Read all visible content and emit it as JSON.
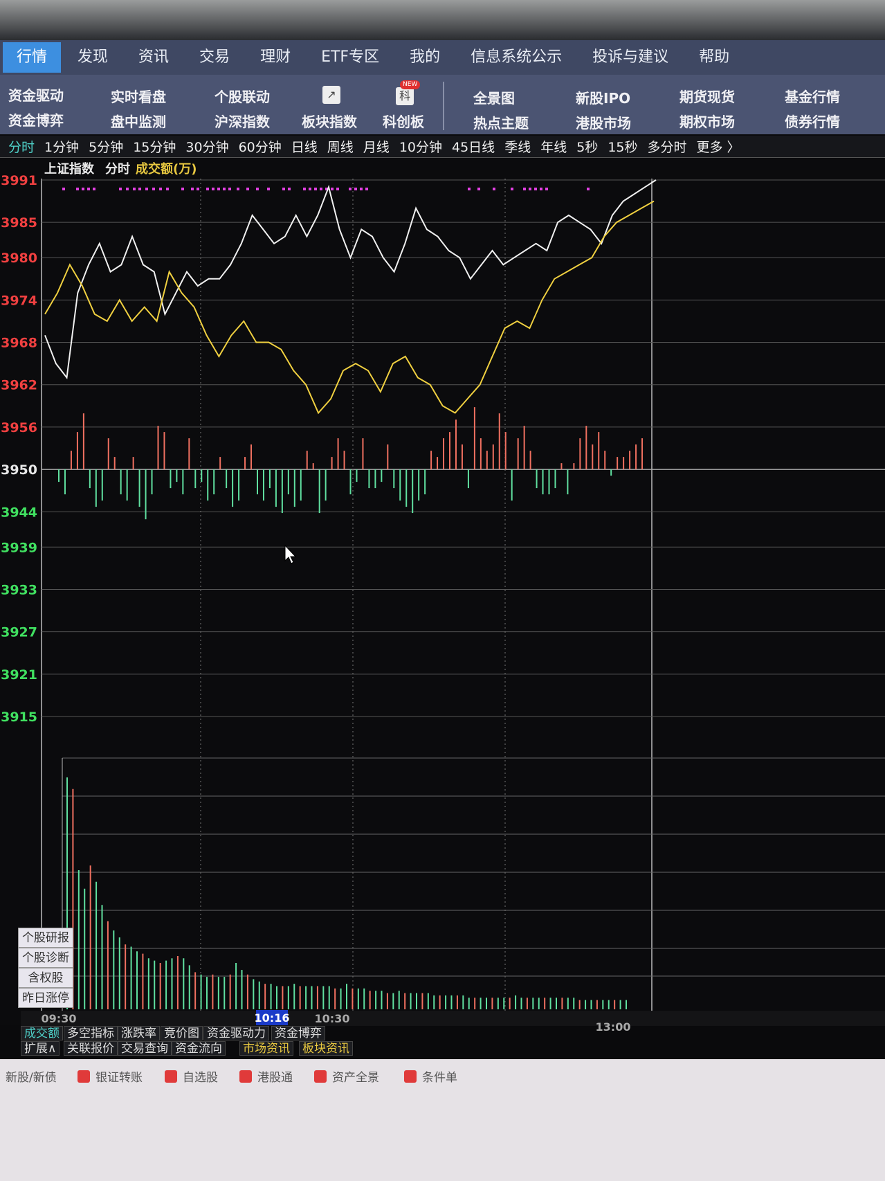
{
  "nav": {
    "items": [
      "行情",
      "发现",
      "资讯",
      "交易",
      "理财",
      "ETF专区",
      "我的",
      "信息系统公示",
      "投诉与建议",
      "帮助"
    ],
    "active": 0
  },
  "subnav": {
    "items": [
      "资金驱动",
      "资金博弈",
      "实时看盘",
      "盘中监测",
      "个股联动",
      "沪深指数",
      "板块指数",
      "科创板",
      "全景图",
      "热点主题",
      "新股IPO",
      "港股市场",
      "期货现货",
      "期权市场",
      "基金行情",
      "债券行情"
    ],
    "icon_kechuang": "科",
    "new_badge": "NEW"
  },
  "periods": {
    "items": [
      "分时",
      "1分钟",
      "5分钟",
      "15分钟",
      "30分钟",
      "60分钟",
      "日线",
      "周线",
      "月线",
      "10分钟",
      "45日线",
      "季线",
      "年线",
      "5秒",
      "15秒",
      "多分时",
      "更多 〉"
    ],
    "active": 0
  },
  "chart_header": {
    "name": "上证指数",
    "mode": "分时",
    "indicator": "成交额(万)"
  },
  "chart_data": {
    "type": "line",
    "y_ticks_up": [
      "3991",
      "3985",
      "3980",
      "3974",
      "3968",
      "3962",
      "3956"
    ],
    "y_tick_base": "3950",
    "y_ticks_down": [
      "3944",
      "3939",
      "3933",
      "3927",
      "3921",
      "3915"
    ],
    "ylim": [
      3915,
      3991
    ],
    "x_ticks": [
      "09:30",
      "10:30",
      "13:00"
    ],
    "crosshair_time": "10:16",
    "series": [
      {
        "color": "#f0f0f0",
        "values": [
          3969,
          3965,
          3963,
          3975,
          3979,
          3982,
          3978,
          3979,
          3983,
          3979,
          3978,
          3972,
          3975,
          3978,
          3976,
          3977,
          3977,
          3979,
          3982,
          3986,
          3984,
          3982,
          3983,
          3986,
          3983,
          3986,
          3990,
          3984,
          3980,
          3984,
          3983,
          3980,
          3978,
          3982,
          3987,
          3984,
          3983,
          3981,
          3980,
          3977,
          3979,
          3981,
          3979,
          3980,
          3981,
          3982,
          3981,
          3985,
          3986,
          3985,
          3984,
          3982,
          3986,
          3988,
          3989,
          3990,
          3991
        ]
      },
      {
        "color": "#f0d040",
        "values": [
          3972,
          3975,
          3979,
          3976,
          3972,
          3971,
          3974,
          3971,
          3973,
          3971,
          3978,
          3975,
          3973,
          3969,
          3966,
          3969,
          3971,
          3968,
          3968,
          3967,
          3964,
          3962,
          3958,
          3960,
          3964,
          3965,
          3964,
          3961,
          3965,
          3966,
          3963,
          3962,
          3959,
          3958,
          3960,
          3962,
          3966,
          3970,
          3971,
          3970,
          3974,
          3977,
          3978,
          3979,
          3980,
          3983,
          3985,
          3986,
          3987,
          3988
        ]
      }
    ],
    "pressure_bars": [
      -2,
      -4,
      3,
      6,
      9,
      -3,
      -6,
      -5,
      5,
      2,
      -4,
      -5,
      2,
      -6,
      -8,
      -4,
      7,
      6,
      -3,
      -2,
      -4,
      5,
      -3,
      -2,
      -5,
      -4,
      2,
      -3,
      -6,
      -5,
      2,
      4,
      -4,
      -5,
      -3,
      -6,
      -7,
      -4,
      -6,
      -5,
      3,
      1,
      -7,
      -5,
      2,
      5,
      3,
      -4,
      -2,
      5,
      -3,
      -3,
      -2,
      4,
      -3,
      -5,
      -6,
      -7,
      -5,
      -4,
      3,
      2,
      5,
      6,
      8,
      4,
      -3,
      10,
      5,
      3,
      4,
      9,
      6,
      -5,
      5,
      7,
      3,
      -3,
      -4,
      -4,
      -3,
      1,
      -4,
      1,
      5,
      7,
      4,
      6,
      3,
      -1,
      2,
      2,
      3,
      4,
      5
    ]
  },
  "volume_bars": [
    100,
    95,
    60,
    52,
    62,
    55,
    45,
    38,
    34,
    31,
    28,
    27,
    25,
    24,
    22,
    21,
    20,
    21,
    22,
    23,
    22,
    19,
    16,
    15,
    14,
    15,
    14,
    14,
    15,
    20,
    17,
    15,
    13,
    12,
    11,
    11,
    10,
    10,
    10,
    11,
    10,
    10,
    10,
    10,
    10,
    10,
    9,
    9,
    11,
    9,
    9,
    9,
    8,
    8,
    8,
    7,
    7,
    8,
    7,
    7,
    7,
    7,
    7,
    6,
    6,
    6,
    6,
    6,
    6,
    5,
    5,
    5,
    5,
    5,
    5,
    5,
    5,
    6,
    5,
    5,
    5,
    5,
    5,
    5,
    5,
    5,
    5,
    5,
    4,
    4,
    4,
    4,
    4,
    4,
    4,
    4,
    4
  ],
  "side_buttons": [
    "个股研报",
    "个股诊断",
    "含权股",
    "昨日涨停"
  ],
  "bottom_tabs_row1": [
    "成交额",
    "多空指标",
    "涨跌率",
    "竞价图",
    "资金驱动力",
    "资金博弈"
  ],
  "bottom_tabs_row2": [
    "扩展∧",
    "关联报价",
    "交易查询",
    "资金流向",
    "市场资讯",
    "板块资讯"
  ],
  "taskbar": [
    "新股/新债",
    "银证转账",
    "自选股",
    "港股通",
    "资产全景",
    "条件单"
  ],
  "colors": {
    "up": "#f07060",
    "down": "#60e0a0",
    "price_line": "#f0f0f0",
    "avg_line": "#f0d040",
    "marker": "#e040e0",
    "accent": "#3d8fe0"
  }
}
